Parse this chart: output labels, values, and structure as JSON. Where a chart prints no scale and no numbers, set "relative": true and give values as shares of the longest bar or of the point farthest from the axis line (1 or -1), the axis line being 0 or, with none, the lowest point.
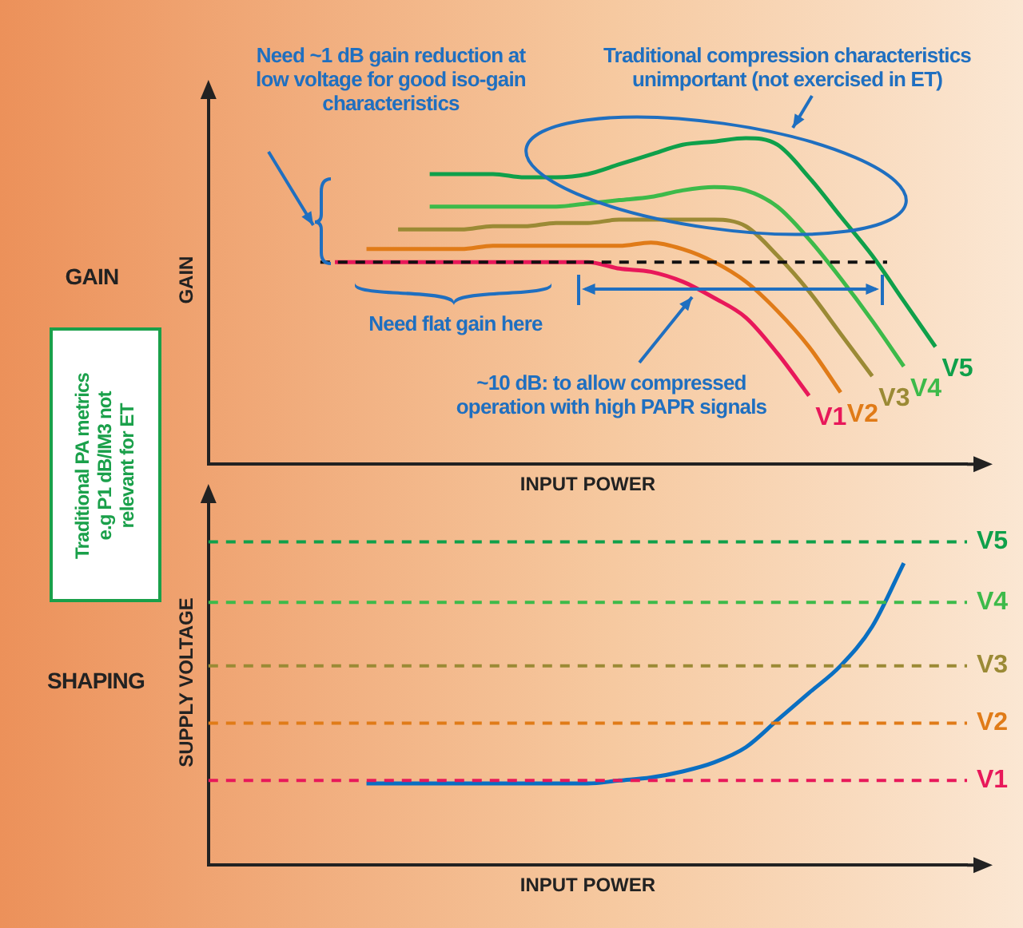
{
  "chart_data": [
    {
      "type": "line",
      "xlabel": "INPUT POWER",
      "ylabel": "GAIN",
      "relative": true,
      "grid": false,
      "legend": false,
      "categories": [
        null,
        null,
        null,
        null,
        null,
        null,
        null,
        null,
        null,
        null,
        null,
        null,
        null,
        null,
        null,
        null,
        null,
        null,
        null,
        null,
        null,
        null,
        null,
        null,
        null
      ],
      "series": [
        {
          "name": "V1",
          "color": "#e8185a",
          "values": [
            null,
            null,
            null,
            null,
            0.62,
            0.62,
            0.62,
            0.62,
            0.62,
            0.62,
            0.62,
            0.62,
            0.62,
            0.6,
            0.59,
            0.56,
            0.51,
            0.45,
            0.34,
            0.21,
            null,
            null,
            null,
            null,
            null
          ]
        },
        {
          "name": "V2",
          "color": "#e07b18",
          "values": [
            null,
            null,
            null,
            null,
            null,
            0.66,
            0.66,
            0.66,
            0.66,
            0.67,
            0.67,
            0.67,
            0.67,
            0.67,
            0.68,
            0.66,
            0.62,
            0.56,
            0.47,
            0.36,
            0.22,
            null,
            null,
            null,
            null
          ]
        },
        {
          "name": "V3",
          "color": "#9b8a35",
          "values": [
            null,
            null,
            null,
            null,
            null,
            null,
            0.72,
            0.72,
            0.72,
            0.73,
            0.73,
            0.74,
            0.74,
            0.75,
            0.75,
            0.75,
            0.75,
            0.73,
            0.64,
            0.53,
            0.4,
            0.27,
            null,
            null,
            null
          ]
        },
        {
          "name": "V4",
          "color": "#3dba4a",
          "values": [
            null,
            null,
            null,
            null,
            null,
            null,
            null,
            0.79,
            0.79,
            0.79,
            0.79,
            0.79,
            0.8,
            0.81,
            0.82,
            0.84,
            0.85,
            0.84,
            0.79,
            0.69,
            0.57,
            0.44,
            0.3,
            null,
            null
          ]
        },
        {
          "name": "V5",
          "color": "#0fa04a",
          "values": [
            null,
            null,
            null,
            null,
            null,
            null,
            null,
            0.89,
            0.89,
            0.89,
            0.88,
            0.88,
            0.89,
            0.92,
            0.95,
            0.98,
            0.99,
            1,
            0.98,
            0.88,
            0.76,
            0.64,
            0.5,
            0.36,
            null
          ]
        }
      ],
      "ref_lines": [
        {
          "axis": "y",
          "value": 0.62,
          "color": "#111111",
          "line_style": "dashed"
        }
      ],
      "annotations": [
        "GAIN",
        "Traditional PA metrics e.g P1 dB/IM3 not relevant for ET",
        "Need ~1 dB gain reduction at low voltage for good iso-gain characteristics",
        "Traditional compression characteristics unimportant (not exercised in ET)",
        "Need flat gain here",
        "~10 dB: to allow compressed operation with high PAPR signals"
      ]
    },
    {
      "type": "line",
      "xlabel": "INPUT POWER",
      "ylabel": "SUPPLY VOLTAGE",
      "relative": true,
      "grid": false,
      "legend": false,
      "categories": [
        null,
        null,
        null,
        null,
        null,
        null,
        null,
        null,
        null,
        null,
        null,
        null,
        null,
        null,
        null,
        null,
        null,
        null,
        null,
        null,
        null,
        null,
        null,
        null,
        null
      ],
      "series": [
        {
          "color": "#0a6fc2",
          "values": [
            null,
            null,
            null,
            null,
            null,
            0.27,
            0.27,
            0.27,
            0.27,
            0.27,
            0.27,
            0.27,
            0.27,
            0.28,
            0.29,
            0.31,
            0.34,
            0.39,
            0.48,
            0.57,
            0.66,
            0.79,
            1,
            null,
            null
          ]
        }
      ],
      "ref_lines": [
        {
          "axis": "y",
          "value": 0.28,
          "label": "V1",
          "color": "#e8185a",
          "line_style": "dashed"
        },
        {
          "axis": "y",
          "value": 0.47,
          "label": "V2",
          "color": "#e07b18",
          "line_style": "dashed"
        },
        {
          "axis": "y",
          "value": 0.66,
          "label": "V3",
          "color": "#9b8a35",
          "line_style": "dashed"
        },
        {
          "axis": "y",
          "value": 0.87,
          "label": "V4",
          "color": "#3dba4a",
          "line_style": "dashed"
        },
        {
          "axis": "y",
          "value": 1.07,
          "label": "V5",
          "color": "#0fa04a",
          "line_style": "dashed"
        }
      ],
      "annotations": [
        "SHAPING"
      ]
    }
  ]
}
